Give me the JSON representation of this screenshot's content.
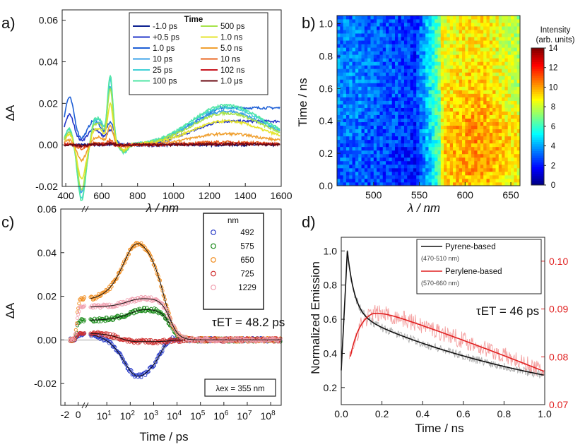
{
  "chart_data": [
    {
      "panel": "a)",
      "type": "line",
      "xlabel": "λ / nm",
      "ylabel": "ΔA",
      "xlim": [
        380,
        1600
      ],
      "ylim": [
        -0.02,
        0.065
      ],
      "xticks": [
        "400",
        "600",
        "800",
        "1000",
        "1200",
        "1400",
        "1600"
      ],
      "yticks": [
        "-0.02",
        "0.00",
        "0.02",
        "0.04",
        "0.06"
      ],
      "legend_title": "Time",
      "series": [
        {
          "name": "-1.0 ps",
          "color": "#0a1f8f",
          "kind": "zero"
        },
        {
          "name": "+0.5 ps",
          "color": "#2235c8",
          "kind": "early",
          "scale": 0.35
        },
        {
          "name": "1.0 ps",
          "color": "#1e5fd6",
          "kind": "early",
          "scale": 0.55
        },
        {
          "name": "10 ps",
          "color": "#3aa0e8",
          "kind": "main",
          "scale": 0.85
        },
        {
          "name": "25 ps",
          "color": "#3fd0d6",
          "kind": "main",
          "scale": 0.95
        },
        {
          "name": "100 ps",
          "color": "#50e6a6",
          "kind": "main",
          "scale": 1.0
        },
        {
          "name": "500 ps",
          "color": "#a6e34a",
          "kind": "main",
          "scale": 0.8
        },
        {
          "name": "1.0 ns",
          "color": "#e6e42c",
          "kind": "main",
          "scale": 0.6
        },
        {
          "name": "5.0 ns",
          "color": "#f0a030",
          "kind": "main",
          "scale": 0.28
        },
        {
          "name": "10 ns",
          "color": "#e8641e",
          "kind": "late",
          "scale": 0.12
        },
        {
          "name": "102 ns",
          "color": "#c8141e",
          "kind": "late",
          "scale": 0.05
        },
        {
          "name": "1.0 μs",
          "color": "#6a0a12",
          "kind": "late",
          "scale": 0.03
        }
      ]
    },
    {
      "panel": "b)",
      "type": "heatmap",
      "xlabel": "λ / nm",
      "ylabel": "Time / ns",
      "xlim": [
        460,
        660
      ],
      "ylim": [
        0,
        1.05
      ],
      "xticks": [
        "500",
        "550",
        "600",
        "650"
      ],
      "yticks": [
        "0.0",
        "0.2",
        "0.4",
        "0.6",
        "0.8",
        "1.0"
      ],
      "colorbar_title": "Intensity",
      "colorbar_subtitle": "(arb. units)",
      "colorbar_ticks": [
        "0",
        "2",
        "4",
        "6",
        "8",
        "10",
        "12",
        "14"
      ],
      "colorbar_range": [
        0,
        14
      ]
    },
    {
      "panel": "c)",
      "type": "scatter",
      "xlabel": "Time / ps",
      "ylabel": "ΔA",
      "ylim": [
        -0.03,
        0.06
      ],
      "yticks": [
        "-0.02",
        "0.00",
        "0.02",
        "0.04",
        "0.06"
      ],
      "xticks_linear": [
        "-2",
        "0"
      ],
      "xticks_log": [
        "10^1",
        "10^2",
        "10^3",
        "10^4",
        "10^5",
        "10^6",
        "10^7",
        "10^8"
      ],
      "legend_title": "nm",
      "annotation": "τET = 48.2 ps",
      "annotation_box": "λex = 355 nm",
      "series": [
        {
          "name": "492",
          "color": "#2a3cc8",
          "amp": -0.019
        },
        {
          "name": "575",
          "color": "#1a8a1a",
          "amp": 0.014
        },
        {
          "name": "650",
          "color": "#f08c1e",
          "amp": 0.047
        },
        {
          "name": "725",
          "color": "#d03030",
          "amp": 0.0015
        },
        {
          "name": "1229",
          "color": "#f0a0b0",
          "amp": 0.019
        }
      ]
    },
    {
      "panel": "d)",
      "type": "line",
      "xlabel": "Time / ns",
      "ylabel": "Normalized Emission",
      "xlim": [
        0,
        1.0
      ],
      "ylim": [
        0.1,
        1.08
      ],
      "y2lim": [
        0.07,
        0.105
      ],
      "xticks": [
        "0.0",
        "0.2",
        "0.4",
        "0.6",
        "0.8",
        "1.0"
      ],
      "yticks": [
        "0.2",
        "0.4",
        "0.6",
        "0.8",
        "1.0"
      ],
      "y2ticks": [
        "0.07",
        "0.08",
        "0.09",
        "0.10"
      ],
      "annotation": "τET = 46 ps",
      "series": [
        {
          "name": "Pyrene-based",
          "range_label": "(470-510 nm)",
          "color": "#111111"
        },
        {
          "name": "Perylene-based",
          "range_label": "(570-660 nm)",
          "color": "#e02020"
        }
      ]
    }
  ]
}
